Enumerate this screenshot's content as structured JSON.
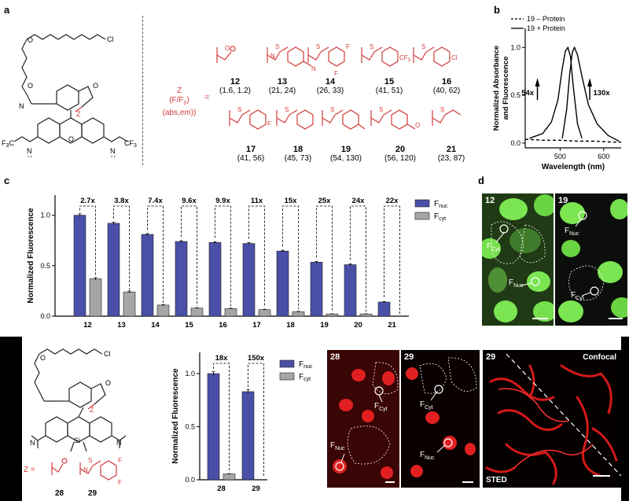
{
  "panel_labels": {
    "a": "a",
    "b": "b",
    "c": "c",
    "d": "d"
  },
  "panel_a": {
    "z_def_line1": "Z",
    "z_def_line2": "(F/F",
    "z_def_line2_sub": "0",
    "z_def_line2_end": ")",
    "z_def_line3": "(abs,em))",
    "equals": "=",
    "cl_label": "Cl",
    "compounds": [
      {
        "num": "12",
        "vals": "(1.6, 1.2)"
      },
      {
        "num": "13",
        "vals": "(21, 24)"
      },
      {
        "num": "14",
        "vals": "(26, 33)"
      },
      {
        "num": "15",
        "vals": "(41, 51)"
      },
      {
        "num": "16",
        "vals": "(40, 62)"
      },
      {
        "num": "17",
        "vals": "(41, 56)"
      },
      {
        "num": "18",
        "vals": "(45, 73)"
      },
      {
        "num": "19",
        "vals": "(54, 130)"
      },
      {
        "num": "20",
        "vals": "(56, 120)"
      },
      {
        "num": "21",
        "vals": "(23, 87)"
      }
    ],
    "substituents": {
      "n": "N",
      "f": "F",
      "cf3": "CF",
      "cf3_sub": "3",
      "cl": "Cl",
      "cf3_left": "F",
      "cf3_left_sub": "3",
      "cf3_left_tail": "C",
      "nh": "H",
      "nh_n": "N",
      "o": "O",
      "z": "Z",
      "s": "S"
    }
  },
  "chart_data": [
    {
      "id": "b",
      "type": "line",
      "xlabel": "Wavelength (nm)",
      "ylabel": "Normalized Absorbance and Fluorescence",
      "xlim": [
        420,
        640
      ],
      "ylim": [
        -0.05,
        1.2
      ],
      "xticks": [
        500,
        600
      ],
      "yticks": [
        0.0,
        0.5,
        1.0
      ],
      "ytick_labels": [
        "0.0",
        "0.5",
        "1.0"
      ],
      "legend": [
        {
          "label": "19 – Protein",
          "style": "dashed"
        },
        {
          "label": "19 + Protein",
          "style": "solid"
        }
      ],
      "annotations": [
        "54x",
        "130x"
      ],
      "series": [
        {
          "name": "19 – Protein",
          "style": "dashed",
          "x": [
            420,
            460,
            500,
            540,
            580,
            620,
            640
          ],
          "y": [
            0.04,
            0.03,
            0.03,
            0.02,
            0.02,
            0.01,
            0.01
          ]
        },
        {
          "name": "19 + Protein (abs)",
          "style": "solid",
          "x": [
            430,
            460,
            480,
            495,
            505,
            512,
            518,
            524,
            530,
            540,
            550
          ],
          "y": [
            0.05,
            0.1,
            0.22,
            0.45,
            0.78,
            0.96,
            1.0,
            0.9,
            0.6,
            0.2,
            0.05
          ]
        },
        {
          "name": "19 + Protein (em)",
          "style": "solid",
          "x": [
            505,
            515,
            522,
            528,
            533,
            540,
            550,
            565,
            585,
            610,
            635
          ],
          "y": [
            0.05,
            0.35,
            0.72,
            0.95,
            1.0,
            0.92,
            0.7,
            0.4,
            0.2,
            0.08,
            0.02
          ]
        }
      ]
    },
    {
      "id": "c",
      "type": "bar",
      "ylabel": "Normalized Fluorescence",
      "ylim": [
        0,
        1.2
      ],
      "yticks": [
        0.0,
        0.5,
        1.0
      ],
      "ytick_labels": [
        "0.0",
        "0.5",
        "1.0"
      ],
      "categories": [
        "12",
        "13",
        "14",
        "15",
        "16",
        "17",
        "18",
        "19",
        "20",
        "21"
      ],
      "series": [
        {
          "name": "F_nuc",
          "label_main": "F",
          "label_sub": "nuc",
          "color": "#4a4fa8",
          "values": [
            1.0,
            0.92,
            0.81,
            0.74,
            0.73,
            0.72,
            0.645,
            0.535,
            0.51,
            0.14
          ],
          "errors": [
            0.015,
            0.012,
            0.008,
            0.008,
            0.008,
            0.008,
            0.008,
            0.008,
            0.008,
            0.005
          ]
        },
        {
          "name": "F_cyt",
          "label_main": "F",
          "label_sub": "cyt",
          "color": "#a6a6a6",
          "values": [
            0.37,
            0.24,
            0.11,
            0.08,
            0.075,
            0.065,
            0.045,
            0.022,
            0.022,
            0.0
          ],
          "errors": [
            0.012,
            0.01,
            0.005,
            0.004,
            0.004,
            0.004,
            0.003,
            0.002,
            0.002,
            0.0
          ]
        }
      ],
      "ratios": [
        "2.7x",
        "3.8x",
        "7.4x",
        "9.6x",
        "9.9x",
        "11x",
        "15x",
        "25x",
        "24x",
        "22x"
      ]
    },
    {
      "id": "e",
      "type": "bar",
      "ylabel": "Normalized Fluorescence",
      "ylim": [
        0,
        1.2
      ],
      "yticks": [
        0.0,
        0.5,
        1.0
      ],
      "ytick_labels": [
        "0.0",
        "0.5",
        "1.0"
      ],
      "categories": [
        "28",
        "29"
      ],
      "series": [
        {
          "name": "F_nuc",
          "label_main": "F",
          "label_sub": "nuc",
          "color": "#4a4fa8",
          "values": [
            1.0,
            0.83
          ],
          "errors": [
            0.02,
            0.02
          ]
        },
        {
          "name": "F_cyt",
          "label_main": "F",
          "label_sub": "cyt",
          "color": "#a6a6a6",
          "values": [
            0.055,
            0.0
          ],
          "errors": [
            0.003,
            0.0
          ]
        }
      ],
      "ratios": [
        "18x",
        "150x"
      ]
    }
  ],
  "panel_d": {
    "images": [
      {
        "tag": "12",
        "fcyt": "F",
        "fcyt_sub": "Cyt",
        "fnuc": "F",
        "fnuc_sub": "Nuc"
      },
      {
        "tag": "19",
        "fcyt": "F",
        "fcyt_sub": "Cyt",
        "fnuc": "F",
        "fnuc_sub": "Nuc"
      }
    ]
  },
  "panel_bottom": {
    "z_eq": "Z  =",
    "compounds": [
      {
        "num": "28"
      },
      {
        "num": "29"
      }
    ],
    "f_label": "F",
    "si_label": "Si",
    "images": [
      {
        "tag": "28",
        "fcyt": "F",
        "fcyt_sub": "Cyt",
        "fnuc": "F",
        "fnuc_sub": "Nuc"
      },
      {
        "tag": "29",
        "fcyt": "F",
        "fcyt_sub": "Cyt",
        "fnuc": "F",
        "fnuc_sub": "Nuc"
      },
      {
        "tag": "29",
        "confocal": "Confocal",
        "sted": "STED"
      }
    ]
  },
  "colors": {
    "red": "#d33b3b",
    "blue": "#4a4fa8",
    "grey": "#a6a6a6",
    "green": "#6fd14a",
    "image_red": "#e02020"
  }
}
